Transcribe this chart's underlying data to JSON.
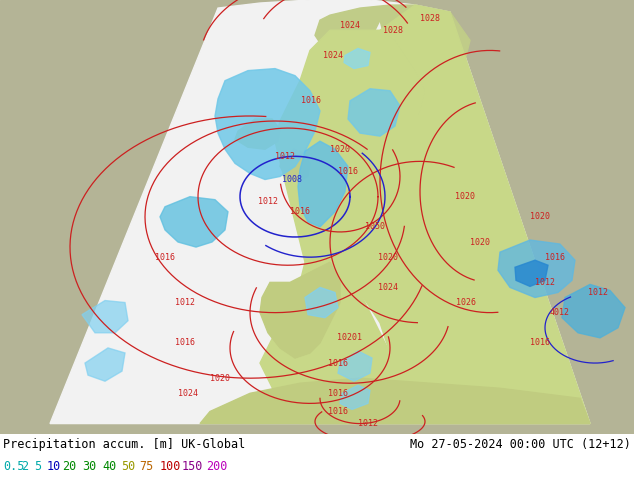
{
  "title_left": "Precipitation accum. [m] UK-Global",
  "title_right": "Mo 27-05-2024 00:00 UTC (12+12)",
  "colorbar_values": [
    "0.5",
    "2",
    "5",
    "10",
    "20",
    "30",
    "40",
    "50",
    "75",
    "100",
    "150",
    "200"
  ],
  "bg_color": "#ffffff",
  "fig_width": 6.34,
  "fig_height": 4.9,
  "dpi": 100,
  "outer_land_color": "#b8b89a",
  "sea_color_outside": "#c8c8b0",
  "domain_bg": "#f0f0f0",
  "land_green": "#c8d890",
  "land_green2": "#b8cc80",
  "sea_blue": "#a8c8d8",
  "precip_cyan": "#80d0f0",
  "precip_blue": "#40a0e0",
  "precip_dark_blue": "#2060c0",
  "pressure_red": "#cc0000",
  "pressure_blue": "#0000cc",
  "colorbar_label_colors": [
    "#00aaaa",
    "#00aaaa",
    "#00aaaa",
    "#0000bb",
    "#008800",
    "#008800",
    "#008800",
    "#999900",
    "#bb6600",
    "#bb0000",
    "#880088",
    "#bb00bb"
  ],
  "label_fontsize": 9
}
